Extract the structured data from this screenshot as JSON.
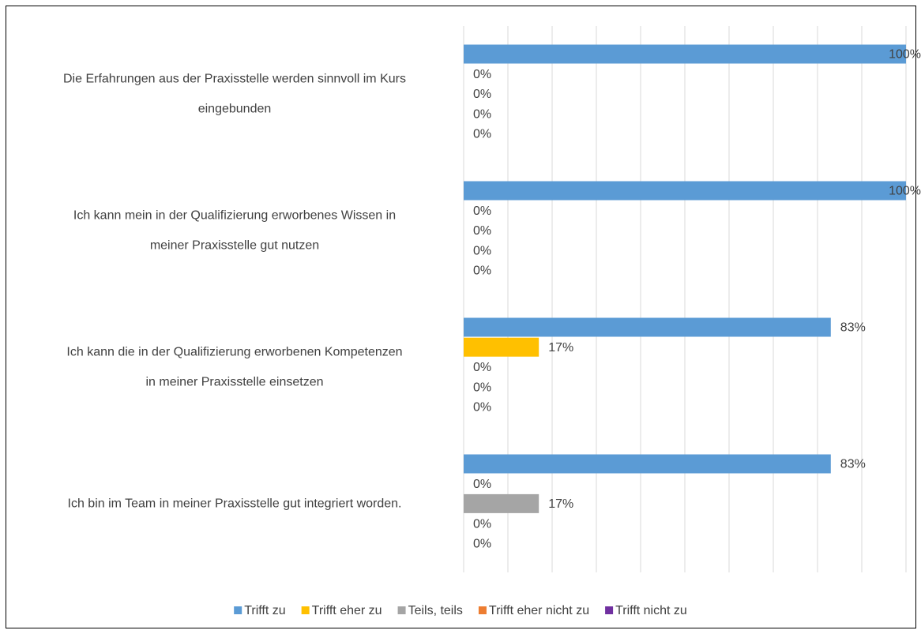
{
  "chart_data": {
    "type": "bar",
    "orientation": "horizontal",
    "categories": [
      [
        "Die Erfahrungen aus der Praxisstelle werden sinnvoll im Kurs",
        "eingebunden"
      ],
      [
        "Ich kann mein in der Qualifizierung erworbenes Wissen in",
        "meiner Praxisstelle gut nutzen"
      ],
      [
        "Ich kann die in der Qualifizierung erworbenen Kompetenzen",
        "in meiner Praxisstelle einsetzen"
      ],
      [
        "Ich bin im Team in meiner Praxisstelle gut integriert worden."
      ]
    ],
    "series": [
      {
        "name": "Trifft zu",
        "color": "#5b9bd5",
        "values": [
          100,
          100,
          83,
          83
        ],
        "value_labels": [
          "100%",
          "100%",
          "83%",
          "83%"
        ]
      },
      {
        "name": "Trifft eher zu",
        "color": "#ffc000",
        "values": [
          0,
          0,
          17,
          0
        ],
        "value_labels": [
          "0%",
          "0%",
          "17%",
          "0%"
        ]
      },
      {
        "name": "Teils, teils",
        "color": "#a5a5a5",
        "values": [
          0,
          0,
          0,
          17
        ],
        "value_labels": [
          "0%",
          "0%",
          "0%",
          "17%"
        ]
      },
      {
        "name": "Trifft eher nicht zu",
        "color": "#ed7d31",
        "values": [
          0,
          0,
          0,
          0
        ],
        "value_labels": [
          "0%",
          "0%",
          "0%",
          "0%"
        ]
      },
      {
        "name": "Trifft nicht zu",
        "color": "#7030a0",
        "values": [
          0,
          0,
          0,
          0
        ],
        "value_labels": [
          "0%",
          "0%",
          "0%",
          "0%"
        ]
      }
    ],
    "xlim": [
      0,
      100
    ],
    "xticks": [
      0,
      10,
      20,
      30,
      40,
      50,
      60,
      70,
      80,
      90,
      100
    ],
    "grid": true,
    "legend": "bottom"
  }
}
